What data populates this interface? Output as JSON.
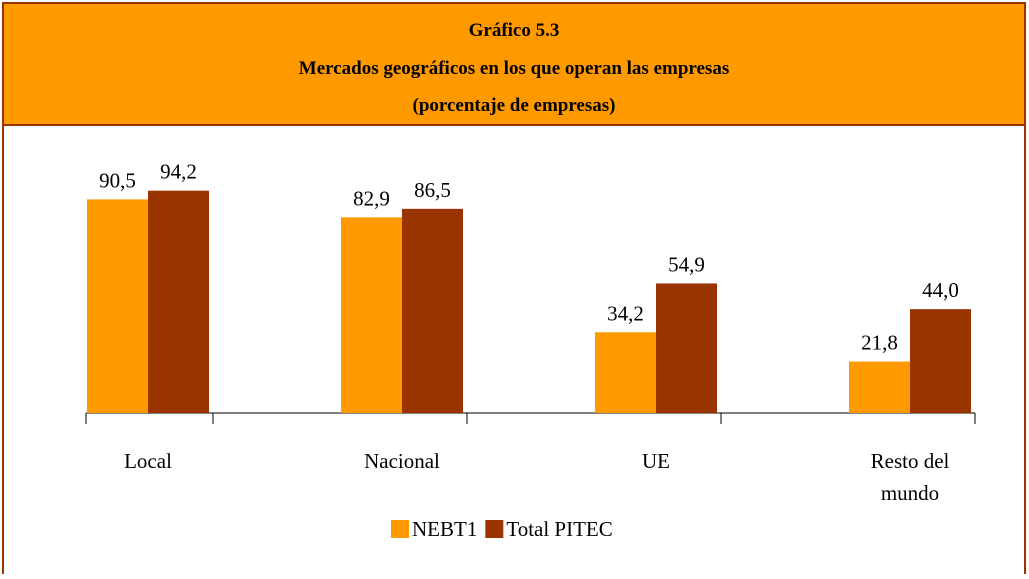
{
  "chart_data": {
    "type": "bar",
    "title": "Gráfico 5.3",
    "subtitle": "Mercados geográficos en los que operan las empresas",
    "note": "(porcentaje de empresas)",
    "categories": [
      "Local",
      "Nacional",
      "UE",
      "Resto del mundo"
    ],
    "series": [
      {
        "name": "NEBT1",
        "color": "#FF9900",
        "values": [
          90.5,
          82.9,
          34.2,
          21.8
        ],
        "value_labels": [
          "90,5",
          "82,9",
          "34,2",
          "21,8"
        ]
      },
      {
        "name": "Total PITEC",
        "color": "#993300",
        "values": [
          94.2,
          86.5,
          54.9,
          44.0
        ],
        "value_labels": [
          "94,2",
          "86,5",
          "54,9",
          "44,0"
        ]
      }
    ],
    "ylim": [
      0,
      100
    ],
    "legend": "bottom"
  }
}
